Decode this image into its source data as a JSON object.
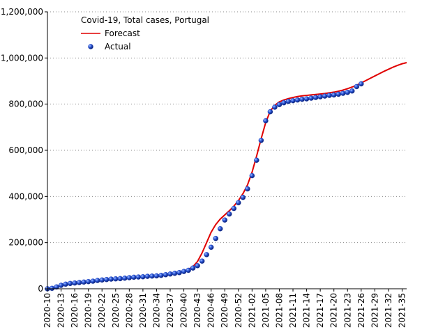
{
  "chart_data": {
    "type": "line",
    "title": "Covid-19, Total cases, Portugal",
    "series": [
      {
        "name": "Forecast",
        "color": "#e00000",
        "mark": "line",
        "x": [
          0,
          1,
          2,
          3,
          4,
          5,
          6,
          7,
          8,
          9,
          10,
          11,
          12,
          13,
          14,
          15,
          16,
          17,
          18,
          19,
          20,
          21,
          22,
          23,
          24,
          25,
          26,
          27,
          28,
          29,
          30,
          31,
          32,
          33,
          34,
          35,
          36,
          37,
          38,
          39,
          40,
          41,
          42,
          43,
          44,
          45,
          46,
          47,
          48,
          49,
          50,
          51,
          52,
          53,
          54,
          55,
          56,
          57,
          58,
          59,
          60,
          61,
          62,
          63,
          64,
          65,
          66,
          67,
          68,
          69,
          70,
          71,
          72,
          73,
          74,
          75,
          76,
          77,
          78,
          79
        ],
        "values": [
          0,
          4000,
          9000,
          14000,
          18000,
          22000,
          25000,
          28000,
          30000,
          33000,
          35000,
          38000,
          40000,
          42000,
          44000,
          45000,
          46000,
          47000,
          48000,
          49000,
          50000,
          51000,
          52000,
          53000,
          54000,
          56000,
          58000,
          61000,
          65000,
          70000,
          76000,
          84000,
          96000,
          118000,
          155000,
          200000,
          245000,
          278000,
          302000,
          320000,
          338000,
          358000,
          382000,
          412000,
          450000,
          505000,
          575000,
          650000,
          720000,
          770000,
          795000,
          810000,
          818000,
          824000,
          829000,
          833000,
          836000,
          838000,
          840000,
          842000,
          844000,
          846000,
          849000,
          852000,
          856000,
          861000,
          867000,
          874000,
          882000,
          892000,
          902000,
          912000,
          922000,
          932000,
          942000,
          951000,
          960000,
          968000,
          975000,
          980000
        ]
      },
      {
        "name": "Actual",
        "color": "#1f3fbf",
        "mark": "point",
        "x": [
          0,
          1,
          2,
          3,
          4,
          5,
          6,
          7,
          8,
          9,
          10,
          11,
          12,
          13,
          14,
          15,
          16,
          17,
          18,
          19,
          20,
          21,
          22,
          23,
          24,
          25,
          26,
          27,
          28,
          29,
          30,
          31,
          32,
          33,
          34,
          35,
          36,
          37,
          38,
          39,
          40,
          41,
          42,
          43,
          44,
          45,
          46,
          47,
          48,
          49,
          50,
          51,
          52,
          53,
          54,
          55,
          56,
          57,
          58,
          59,
          60,
          61,
          62,
          63,
          64,
          65,
          66,
          67,
          68,
          69
        ],
        "values": [
          0,
          2000,
          8000,
          15000,
          20000,
          23000,
          25000,
          27000,
          29000,
          31000,
          33000,
          36000,
          38000,
          40000,
          42000,
          43000,
          44000,
          46000,
          48000,
          50000,
          51000,
          52000,
          54000,
          55000,
          56000,
          58000,
          61000,
          64000,
          67000,
          70000,
          75000,
          80000,
          90000,
          100000,
          120000,
          148000,
          180000,
          218000,
          260000,
          298000,
          324000,
          348000,
          373000,
          396000,
          433000,
          490000,
          557000,
          643000,
          728000,
          767000,
          787000,
          798000,
          806000,
          812000,
          815000,
          818000,
          821000,
          823000,
          826000,
          829000,
          832000,
          835000,
          838000,
          840000,
          843000,
          847000,
          851000,
          857000,
          876000,
          888000
        ]
      }
    ],
    "xlim": [
      0,
      79
    ],
    "xticks": [
      {
        "value": 0,
        "label": "2020-10"
      },
      {
        "value": 3,
        "label": "2020-13"
      },
      {
        "value": 6,
        "label": "2020-16"
      },
      {
        "value": 9,
        "label": "2020-19"
      },
      {
        "value": 12,
        "label": "2020-22"
      },
      {
        "value": 15,
        "label": "2020-25"
      },
      {
        "value": 18,
        "label": "2020-28"
      },
      {
        "value": 21,
        "label": "2020-31"
      },
      {
        "value": 24,
        "label": "2020-34"
      },
      {
        "value": 27,
        "label": "2020-37"
      },
      {
        "value": 30,
        "label": "2020-40"
      },
      {
        "value": 33,
        "label": "2020-43"
      },
      {
        "value": 36,
        "label": "2020-46"
      },
      {
        "value": 39,
        "label": "2020-49"
      },
      {
        "value": 42,
        "label": "2020-52"
      },
      {
        "value": 45,
        "label": "2021-02"
      },
      {
        "value": 48,
        "label": "2021-05"
      },
      {
        "value": 51,
        "label": "2021-08"
      },
      {
        "value": 54,
        "label": "2021-11"
      },
      {
        "value": 57,
        "label": "2021-14"
      },
      {
        "value": 60,
        "label": "2021-17"
      },
      {
        "value": 63,
        "label": "2021-20"
      },
      {
        "value": 66,
        "label": "2021-23"
      },
      {
        "value": 69,
        "label": "2021-26"
      },
      {
        "value": 72,
        "label": "2021-29"
      },
      {
        "value": 75,
        "label": "2021-32"
      },
      {
        "value": 78,
        "label": "2021-35"
      }
    ],
    "ylim": [
      0,
      1200000
    ],
    "yticks": [
      0,
      {
        "value": 200000,
        "label": "200,000"
      },
      {
        "value": 400000,
        "label": "400,000"
      },
      {
        "value": 600000,
        "label": "600,000"
      },
      {
        "value": 800000,
        "label": "800,000"
      },
      {
        "value": 1000000,
        "label": "1,000,000"
      },
      {
        "value": 1200000,
        "label": "1,200,000"
      }
    ],
    "grid": true
  }
}
